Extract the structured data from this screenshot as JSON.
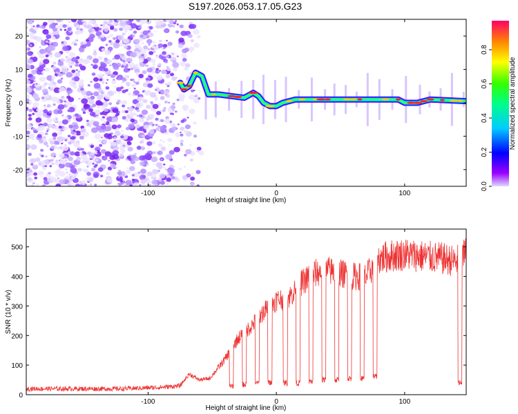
{
  "title": "S197.2026.053.17.05.G23",
  "chart_data": [
    {
      "type": "heatmap",
      "xlabel": "Height of straight line (km)",
      "ylabel": "Frequency (Hz)",
      "xlim": [
        -195,
        148
      ],
      "ylim": [
        -25,
        25
      ],
      "xticks": [
        -100,
        0,
        100
      ],
      "yticks": [
        -20,
        -10,
        0,
        10,
        20
      ],
      "colorbar": {
        "label": "Normalized spectral amplitude",
        "range": [
          0.0,
          0.97
        ],
        "ticks": [
          0.0,
          0.2,
          0.4,
          0.6,
          0.8
        ]
      },
      "signal_track": [
        {
          "x": -75,
          "y": 6
        },
        {
          "x": -72,
          "y": 4
        },
        {
          "x": -68,
          "y": 5
        },
        {
          "x": -63,
          "y": 9
        },
        {
          "x": -58,
          "y": 8
        },
        {
          "x": -53,
          "y": 2.5
        },
        {
          "x": -45,
          "y": 2.5
        },
        {
          "x": -35,
          "y": 2
        },
        {
          "x": -25,
          "y": 1.5
        },
        {
          "x": -18,
          "y": 3
        },
        {
          "x": -14,
          "y": 2
        },
        {
          "x": -10,
          "y": 0
        },
        {
          "x": -5,
          "y": -1
        },
        {
          "x": 0,
          "y": -1
        },
        {
          "x": 5,
          "y": 0
        },
        {
          "x": 15,
          "y": 1
        },
        {
          "x": 40,
          "y": 1
        },
        {
          "x": 60,
          "y": 1
        },
        {
          "x": 80,
          "y": 1
        },
        {
          "x": 95,
          "y": 1
        },
        {
          "x": 100,
          "y": 0
        },
        {
          "x": 110,
          "y": 0
        },
        {
          "x": 120,
          "y": 1
        },
        {
          "x": 148,
          "y": 0.5
        }
      ]
    },
    {
      "type": "line",
      "xlabel": "Height of straight line (km)",
      "ylabel": "SNR (10 * v/v)",
      "xlim": [
        -195,
        148
      ],
      "ylim": [
        0,
        560
      ],
      "xticks": [
        -100,
        0,
        100
      ],
      "yticks": [
        0,
        100,
        200,
        300,
        400,
        500
      ],
      "series": [
        {
          "name": "SNR",
          "color": "#ee3333",
          "envelope": [
            {
              "x": -195,
              "y": 20
            },
            {
              "x": -120,
              "y": 20
            },
            {
              "x": -90,
              "y": 25
            },
            {
              "x": -75,
              "y": 30
            },
            {
              "x": -68,
              "y": 70
            },
            {
              "x": -60,
              "y": 50
            },
            {
              "x": -52,
              "y": 55
            },
            {
              "x": -40,
              "y": 120
            },
            {
              "x": -30,
              "y": 190
            },
            {
              "x": -20,
              "y": 230
            },
            {
              "x": -10,
              "y": 280
            },
            {
              "x": 0,
              "y": 320
            },
            {
              "x": 10,
              "y": 330
            },
            {
              "x": 20,
              "y": 380
            },
            {
              "x": 30,
              "y": 410
            },
            {
              "x": 40,
              "y": 420
            },
            {
              "x": 50,
              "y": 410
            },
            {
              "x": 60,
              "y": 400
            },
            {
              "x": 70,
              "y": 400
            },
            {
              "x": 80,
              "y": 460
            },
            {
              "x": 90,
              "y": 470
            },
            {
              "x": 100,
              "y": 475
            },
            {
              "x": 110,
              "y": 470
            },
            {
              "x": 120,
              "y": 465
            },
            {
              "x": 130,
              "y": 460
            },
            {
              "x": 140,
              "y": 450
            },
            {
              "x": 148,
              "y": 480
            }
          ],
          "dips": [
            {
              "x": -35,
              "y": 30
            },
            {
              "x": -25,
              "y": 35
            },
            {
              "x": -15,
              "y": 40
            },
            {
              "x": -5,
              "y": 40
            },
            {
              "x": 7,
              "y": 40
            },
            {
              "x": 17,
              "y": 40
            },
            {
              "x": 27,
              "y": 45
            },
            {
              "x": 37,
              "y": 50
            },
            {
              "x": 47,
              "y": 50
            },
            {
              "x": 57,
              "y": 55
            },
            {
              "x": 67,
              "y": 55
            },
            {
              "x": 77,
              "y": 60
            },
            {
              "x": 143,
              "y": 40
            }
          ]
        }
      ]
    }
  ]
}
